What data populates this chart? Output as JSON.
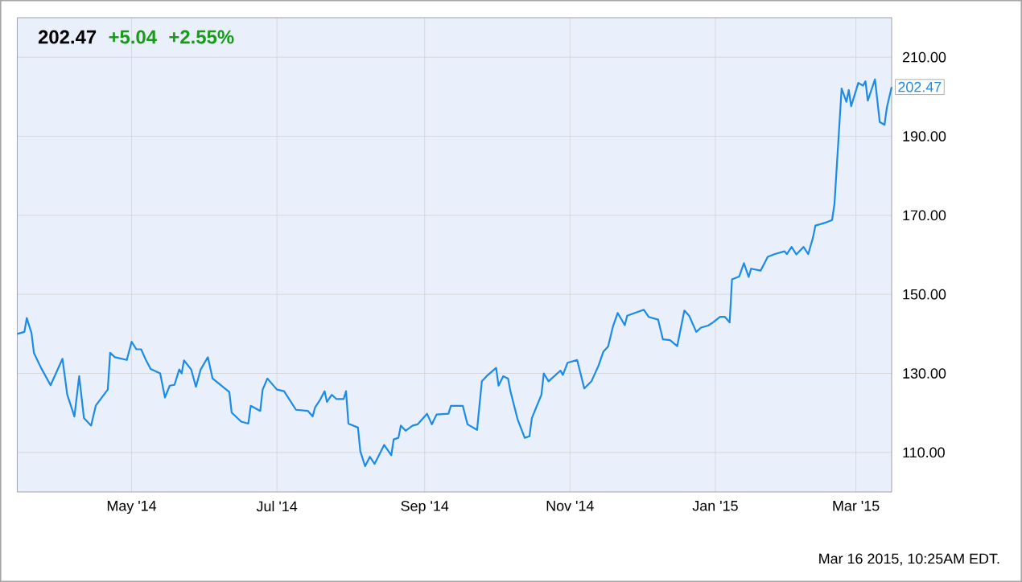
{
  "chart_data": {
    "type": "line",
    "x": [
      "2014-03-14",
      "2014-03-17",
      "2014-03-18",
      "2014-03-20",
      "2014-03-21",
      "2014-03-24",
      "2014-03-28",
      "2014-04-02",
      "2014-04-04",
      "2014-04-07",
      "2014-04-09",
      "2014-04-11",
      "2014-04-14",
      "2014-04-16",
      "2014-04-21",
      "2014-04-22",
      "2014-04-24",
      "2014-04-29",
      "2014-05-01",
      "2014-05-03",
      "2014-05-05",
      "2014-05-07",
      "2014-05-09",
      "2014-05-13",
      "2014-05-15",
      "2014-05-17",
      "2014-05-19",
      "2014-05-21",
      "2014-05-22",
      "2014-05-23",
      "2014-05-26",
      "2014-05-28",
      "2014-05-30",
      "2014-06-02",
      "2014-06-04",
      "2014-06-11",
      "2014-06-12",
      "2014-06-16",
      "2014-06-19",
      "2014-06-20",
      "2014-06-24",
      "2014-06-25",
      "2014-06-27",
      "2014-07-01",
      "2014-07-04",
      "2014-07-09",
      "2014-07-14",
      "2014-07-16",
      "2014-07-17",
      "2014-07-19",
      "2014-07-21",
      "2014-07-22",
      "2014-07-24",
      "2014-07-26",
      "2014-07-29",
      "2014-07-30",
      "2014-07-31",
      "2014-08-04",
      "2014-08-05",
      "2014-08-07",
      "2014-08-09",
      "2014-08-11",
      "2014-08-15",
      "2014-08-18",
      "2014-08-19",
      "2014-08-21",
      "2014-08-22",
      "2014-08-24",
      "2014-08-27",
      "2014-08-29",
      "2014-09-02",
      "2014-09-04",
      "2014-09-06",
      "2014-09-11",
      "2014-09-12",
      "2014-09-17",
      "2014-09-19",
      "2014-09-23",
      "2014-09-25",
      "2014-09-27",
      "2014-10-01",
      "2014-10-02",
      "2014-10-04",
      "2014-10-06",
      "2014-10-07",
      "2014-10-10",
      "2014-10-13",
      "2014-10-15",
      "2014-10-16",
      "2014-10-20",
      "2014-10-21",
      "2014-10-23",
      "2014-10-28",
      "2014-10-29",
      "2014-10-31",
      "2014-11-04",
      "2014-11-07",
      "2014-11-10",
      "2014-11-13",
      "2014-11-15",
      "2014-11-17",
      "2014-11-19",
      "2014-11-21",
      "2014-11-24",
      "2014-11-25",
      "2014-12-02",
      "2014-12-04",
      "2014-12-08",
      "2014-12-10",
      "2014-12-13",
      "2014-12-16",
      "2014-12-19",
      "2014-12-21",
      "2014-12-24",
      "2014-12-26",
      "2014-12-29",
      "2014-12-31",
      "2015-01-03",
      "2015-01-05",
      "2015-01-07",
      "2015-01-08",
      "2015-01-11",
      "2015-01-13",
      "2015-01-15",
      "2015-01-16",
      "2015-01-20",
      "2015-01-23",
      "2015-01-26",
      "2015-01-30",
      "2015-01-31",
      "2015-02-02",
      "2015-02-04",
      "2015-02-07",
      "2015-02-09",
      "2015-02-11",
      "2015-02-12",
      "2015-02-16",
      "2015-02-19",
      "2015-02-20",
      "2015-02-23",
      "2015-02-25",
      "2015-02-26",
      "2015-02-27",
      "2015-03-02",
      "2015-03-04",
      "2015-03-05",
      "2015-03-06",
      "2015-03-09",
      "2015-03-11",
      "2015-03-13",
      "2015-03-14",
      "2015-03-16"
    ],
    "values": [
      140.0,
      140.5,
      144.0,
      140.2,
      135.2,
      131.4,
      127.0,
      133.7,
      124.6,
      119.1,
      129.3,
      118.7,
      116.8,
      121.9,
      125.9,
      135.2,
      134.1,
      133.4,
      138.0,
      136.1,
      136.1,
      133.4,
      131.1,
      130.0,
      123.9,
      126.9,
      127.1,
      131.0,
      130.0,
      133.3,
      131.0,
      126.6,
      131.0,
      134.1,
      128.7,
      125.3,
      120.1,
      117.8,
      117.3,
      121.8,
      120.5,
      125.9,
      128.7,
      125.9,
      125.5,
      120.8,
      120.5,
      119.1,
      121.4,
      123.2,
      125.5,
      122.8,
      124.6,
      123.5,
      123.5,
      125.5,
      117.3,
      116.3,
      110.3,
      106.5,
      108.9,
      107.1,
      111.9,
      109.3,
      113.3,
      113.7,
      116.8,
      115.5,
      116.8,
      117.1,
      119.8,
      117.1,
      119.6,
      119.8,
      121.8,
      121.8,
      117.1,
      115.7,
      128.0,
      129.3,
      131.4,
      126.9,
      129.3,
      128.7,
      125.5,
      118.4,
      113.7,
      114.1,
      118.7,
      124.6,
      130.0,
      128.0,
      130.7,
      129.6,
      132.7,
      133.4,
      126.2,
      128.0,
      132.0,
      135.5,
      136.8,
      141.8,
      145.3,
      142.2,
      144.6,
      146.1,
      144.3,
      143.6,
      138.6,
      138.4,
      136.9,
      145.9,
      144.6,
      140.5,
      141.6,
      142.1,
      142.9,
      144.3,
      144.3,
      142.9,
      153.8,
      154.5,
      157.9,
      154.4,
      156.5,
      156.0,
      159.5,
      160.2,
      160.9,
      160.2,
      162.0,
      160.1,
      162.0,
      160.2,
      164.4,
      167.4,
      168.1,
      168.8,
      172.9,
      202.1,
      198.7,
      201.7,
      197.6,
      203.5,
      202.8,
      203.9,
      199.0,
      204.4,
      193.6,
      192.9,
      197.3,
      202.47
    ],
    "color": "#1a8be6",
    "xlim": [
      "2014-03-14",
      "2015-03-16"
    ],
    "xticks": [
      {
        "value": "2014-05-01",
        "label": "May '14"
      },
      {
        "value": "2014-07-01",
        "label": "Jul '14"
      },
      {
        "value": "2014-09-01",
        "label": "Sep '14"
      },
      {
        "value": "2014-11-01",
        "label": "Nov '14"
      },
      {
        "value": "2015-01-01",
        "label": "Jan '15"
      },
      {
        "value": "2015-03-01",
        "label": "Mar '15"
      }
    ],
    "ylim": [
      100,
      220
    ],
    "yticks": [
      {
        "value": 110,
        "label": "110.00"
      },
      {
        "value": 130,
        "label": "130.00"
      },
      {
        "value": 150,
        "label": "150.00"
      },
      {
        "value": 170,
        "label": "170.00"
      },
      {
        "value": 190,
        "label": "190.00"
      },
      {
        "value": 210,
        "label": "210.00"
      }
    ],
    "grid": true,
    "annotations": [
      "202.47",
      "+5.04",
      "+2.55%",
      {
        "text": "202.47",
        "x": "2015-03-16",
        "y": 202.47
      },
      "Mar 16 2015, 10:25AM EDT."
    ]
  }
}
